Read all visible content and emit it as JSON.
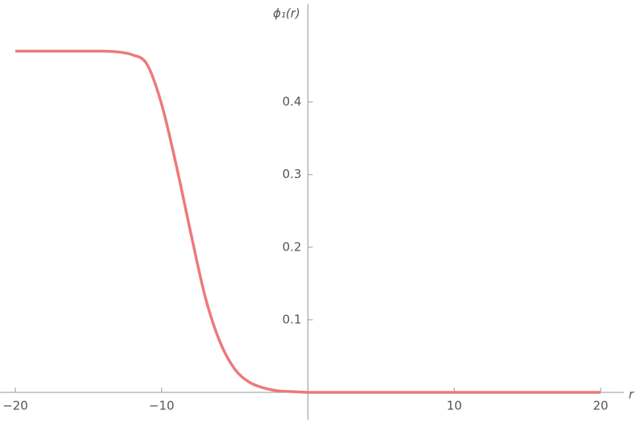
{
  "chart_data": {
    "type": "line",
    "x_label": "r",
    "y_label": "ϕ₁(r)",
    "x": [
      -20,
      -19,
      -18,
      -17,
      -16,
      -15,
      -14,
      -13,
      -12,
      -11,
      -10,
      -9,
      -8,
      -7,
      -6,
      -5,
      -4,
      -3,
      -2,
      -1,
      0,
      1,
      2,
      3,
      4,
      5,
      6,
      7,
      8,
      9,
      10,
      11,
      12,
      13,
      14,
      15,
      16,
      17,
      18,
      19,
      20
    ],
    "series": [
      {
        "color": "#ec7a7a",
        "values": [
          0.47,
          0.47,
          0.47,
          0.47,
          0.47,
          0.47,
          0.47,
          0.469,
          0.465,
          0.452,
          0.397,
          0.313,
          0.219,
          0.13,
          0.069,
          0.032,
          0.014,
          0.006,
          0.002,
          0.001,
          0,
          0,
          0,
          0,
          0,
          0,
          0,
          0,
          0,
          0,
          0,
          0,
          0,
          0,
          0,
          0,
          0,
          0,
          0,
          0,
          0
        ]
      }
    ],
    "xlim": [
      -20,
      20
    ],
    "ylim": [
      0,
      0.535
    ],
    "xticks": [
      {
        "value": -20,
        "label": "−20"
      },
      {
        "value": -10,
        "label": "−10"
      },
      10,
      20
    ],
    "yticks": [
      0.1,
      0.2,
      0.3,
      0.4
    ]
  }
}
